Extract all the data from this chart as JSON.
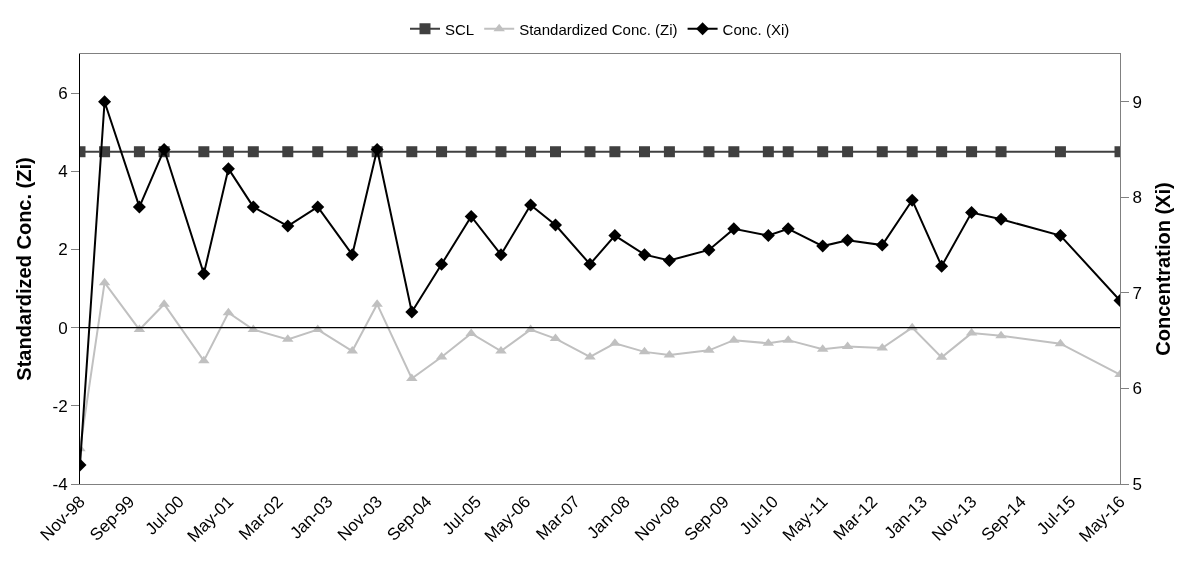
{
  "chart_data": {
    "type": "line",
    "x": [
      "1998-11",
      "1999-04",
      "1999-11",
      "2000-04",
      "2000-12",
      "2001-05",
      "2001-10",
      "2002-05",
      "2002-11",
      "2003-06",
      "2003-11",
      "2004-06",
      "2004-12",
      "2005-06",
      "2005-12",
      "2006-06",
      "2006-11",
      "2007-06",
      "2007-11",
      "2008-05",
      "2008-10",
      "2009-06",
      "2009-11",
      "2010-06",
      "2010-10",
      "2011-05",
      "2011-10",
      "2012-05",
      "2012-11",
      "2013-05",
      "2013-11",
      "2014-05",
      "2015-05",
      "2016-05"
    ],
    "series": [
      {
        "name": "SCL",
        "color": "#404040",
        "marker": "square",
        "values": [
          4.5,
          4.5,
          4.5,
          4.5,
          4.5,
          4.5,
          4.5,
          4.5,
          4.5,
          4.5,
          4.5,
          4.5,
          4.5,
          4.5,
          4.5,
          4.5,
          4.5,
          4.5,
          4.5,
          4.5,
          4.5,
          4.5,
          4.5,
          4.5,
          4.5,
          4.5,
          4.5,
          4.5,
          4.5,
          4.5,
          4.5,
          4.5,
          4.5,
          4.5
        ]
      },
      {
        "name": "Standardized Conc. (Zi)",
        "color": "#c0c0c0",
        "marker": "triangle",
        "values": [
          -3.1,
          1.15,
          -0.05,
          0.6,
          -0.85,
          0.38,
          -0.05,
          -0.3,
          -0.05,
          -0.6,
          0.6,
          -1.3,
          -0.75,
          -0.15,
          -0.6,
          -0.05,
          -0.28,
          -0.75,
          -0.4,
          -0.62,
          -0.7,
          -0.58,
          -0.32,
          -0.4,
          -0.32,
          -0.55,
          -0.48,
          -0.52,
          0,
          -0.76,
          -0.14,
          -0.21,
          -0.41,
          -1.2
        ]
      },
      {
        "name": "Conc. (Xi)",
        "color": "#000000",
        "marker": "diamond",
        "axis": "y2",
        "values": [
          5.2,
          9.0,
          7.9,
          8.5,
          7.2,
          8.3,
          7.9,
          7.7,
          7.9,
          7.4,
          8.5,
          6.8,
          7.3,
          7.8,
          7.4,
          7.92,
          7.71,
          7.3,
          7.6,
          7.4,
          7.34,
          7.45,
          7.67,
          7.6,
          7.67,
          7.49,
          7.55,
          7.5,
          7.97,
          7.28,
          7.84,
          7.77,
          7.6,
          6.92
        ]
      }
    ],
    "ylabel": "Standardized Conc. (Zi)",
    "y2label": "Concentration (Xi)",
    "ylim": [
      -4,
      7
    ],
    "yticks": [
      -4,
      -2,
      0,
      2,
      4,
      6
    ],
    "y2lim": [
      5,
      9.5
    ],
    "y2ticks": [
      5,
      6,
      7,
      8,
      9
    ],
    "xlim": [
      "1998-11",
      "2016-05"
    ],
    "xticks": [
      {
        "value": "1998-11",
        "label": "Nov-98"
      },
      {
        "value": "1999-09",
        "label": "Sep-99"
      },
      {
        "value": "2000-07",
        "label": "Jul-00"
      },
      {
        "value": "2001-05",
        "label": "May-01"
      },
      {
        "value": "2002-03",
        "label": "Mar-02"
      },
      {
        "value": "2003-01",
        "label": "Jan-03"
      },
      {
        "value": "2003-11",
        "label": "Nov-03"
      },
      {
        "value": "2004-09",
        "label": "Sep-04"
      },
      {
        "value": "2005-07",
        "label": "Jul-05"
      },
      {
        "value": "2006-05",
        "label": "May-06"
      },
      {
        "value": "2007-03",
        "label": "Mar-07"
      },
      {
        "value": "2008-01",
        "label": "Jan-08"
      },
      {
        "value": "2008-11",
        "label": "Nov-08"
      },
      {
        "value": "2009-09",
        "label": "Sep-09"
      },
      {
        "value": "2010-07",
        "label": "Jul-10"
      },
      {
        "value": "2011-05",
        "label": "May-11"
      },
      {
        "value": "2012-03",
        "label": "Mar-12"
      },
      {
        "value": "2013-01",
        "label": "Jan-13"
      },
      {
        "value": "2013-11",
        "label": "Nov-13"
      },
      {
        "value": "2014-09",
        "label": "Sep-14"
      },
      {
        "value": "2015-07",
        "label": "Jul-15"
      },
      {
        "value": "2016-05",
        "label": "May-16"
      }
    ],
    "ref_lines": [
      {
        "axis": "y",
        "value": 0,
        "color": "#000000"
      }
    ],
    "legend": "top"
  }
}
